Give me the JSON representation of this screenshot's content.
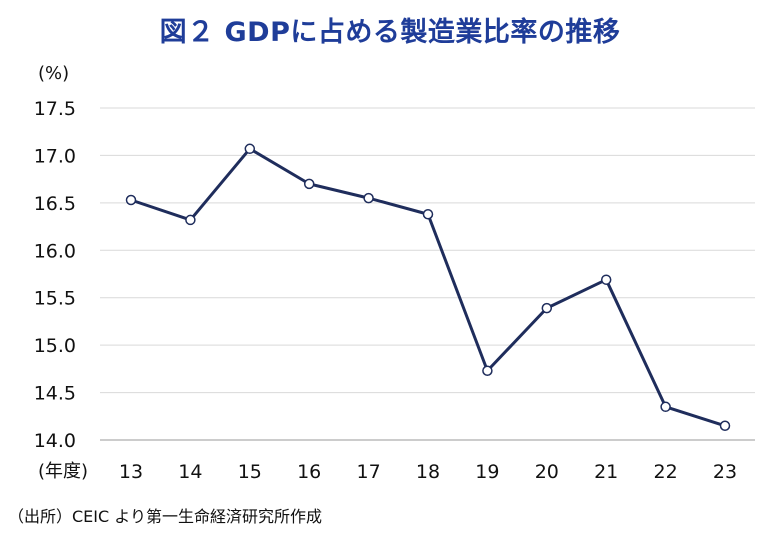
{
  "chart_data": {
    "type": "line",
    "title": "図２ GDPに占める製造業比率の推移",
    "ylabel": "(%)",
    "xlabel": "(年度)",
    "categories": [
      "13",
      "14",
      "15",
      "16",
      "17",
      "18",
      "19",
      "20",
      "21",
      "22",
      "23"
    ],
    "values": [
      16.53,
      16.32,
      17.07,
      16.7,
      16.55,
      16.38,
      14.73,
      15.39,
      15.69,
      14.35,
      14.15
    ],
    "ylim": [
      14.0,
      17.5
    ],
    "yticks": [
      "14.0",
      "14.5",
      "15.0",
      "15.5",
      "16.0",
      "16.5",
      "17.0",
      "17.5"
    ],
    "grid": true,
    "colors": {
      "line": "#1f2d5c",
      "marker_fill": "#ffffff",
      "grid": "#d9d9d9",
      "title": "#1f3d99"
    }
  },
  "source": "（出所）CEIC より第一生命経済研究所作成"
}
